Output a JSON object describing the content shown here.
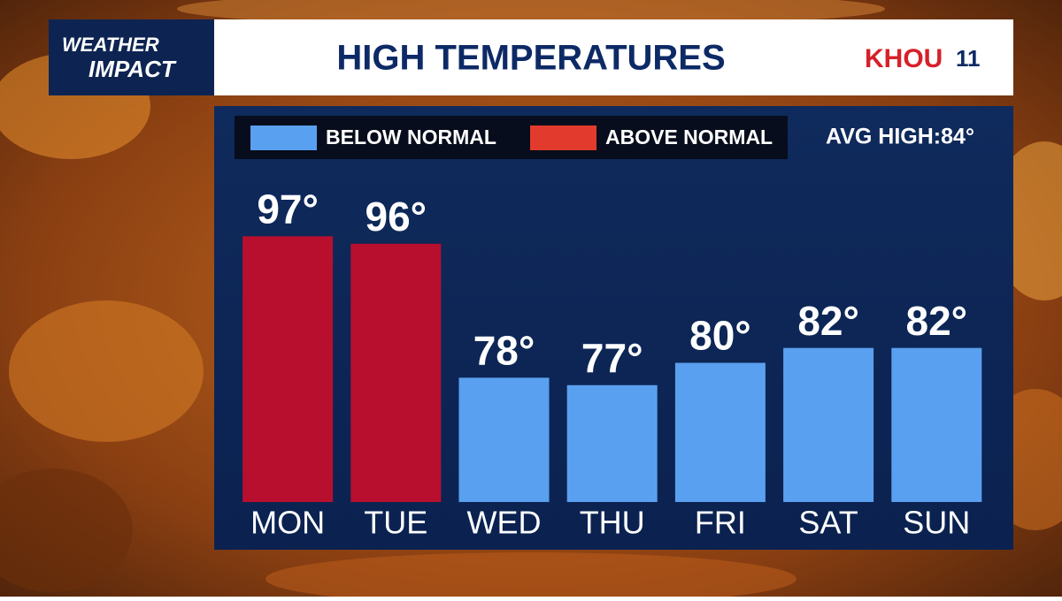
{
  "brand": {
    "line1": "WEATHER",
    "line2": "IMPACT",
    "station": "KHOU",
    "channel": "11"
  },
  "chart_data": {
    "type": "bar",
    "title": "HIGH TEMPERATURES",
    "legend": [
      {
        "name": "BELOW NORMAL",
        "color": "#5aa0f0"
      },
      {
        "name": "ABOVE NORMAL",
        "color": "#e23b2e"
      }
    ],
    "annotation": "AVG HIGH:84°",
    "categories": [
      "MON",
      "TUE",
      "WED",
      "THU",
      "FRI",
      "SAT",
      "SUN"
    ],
    "values": [
      97,
      96,
      78,
      77,
      80,
      82,
      82
    ],
    "value_labels": [
      "97°",
      "96°",
      "78°",
      "77°",
      "80°",
      "82°",
      "82°"
    ],
    "colors": [
      "#b80f2e",
      "#b80f2e",
      "#5aa0f0",
      "#5aa0f0",
      "#5aa0f0",
      "#5aa0f0",
      "#5aa0f0"
    ],
    "ylim": [
      61.3,
      105
    ]
  }
}
